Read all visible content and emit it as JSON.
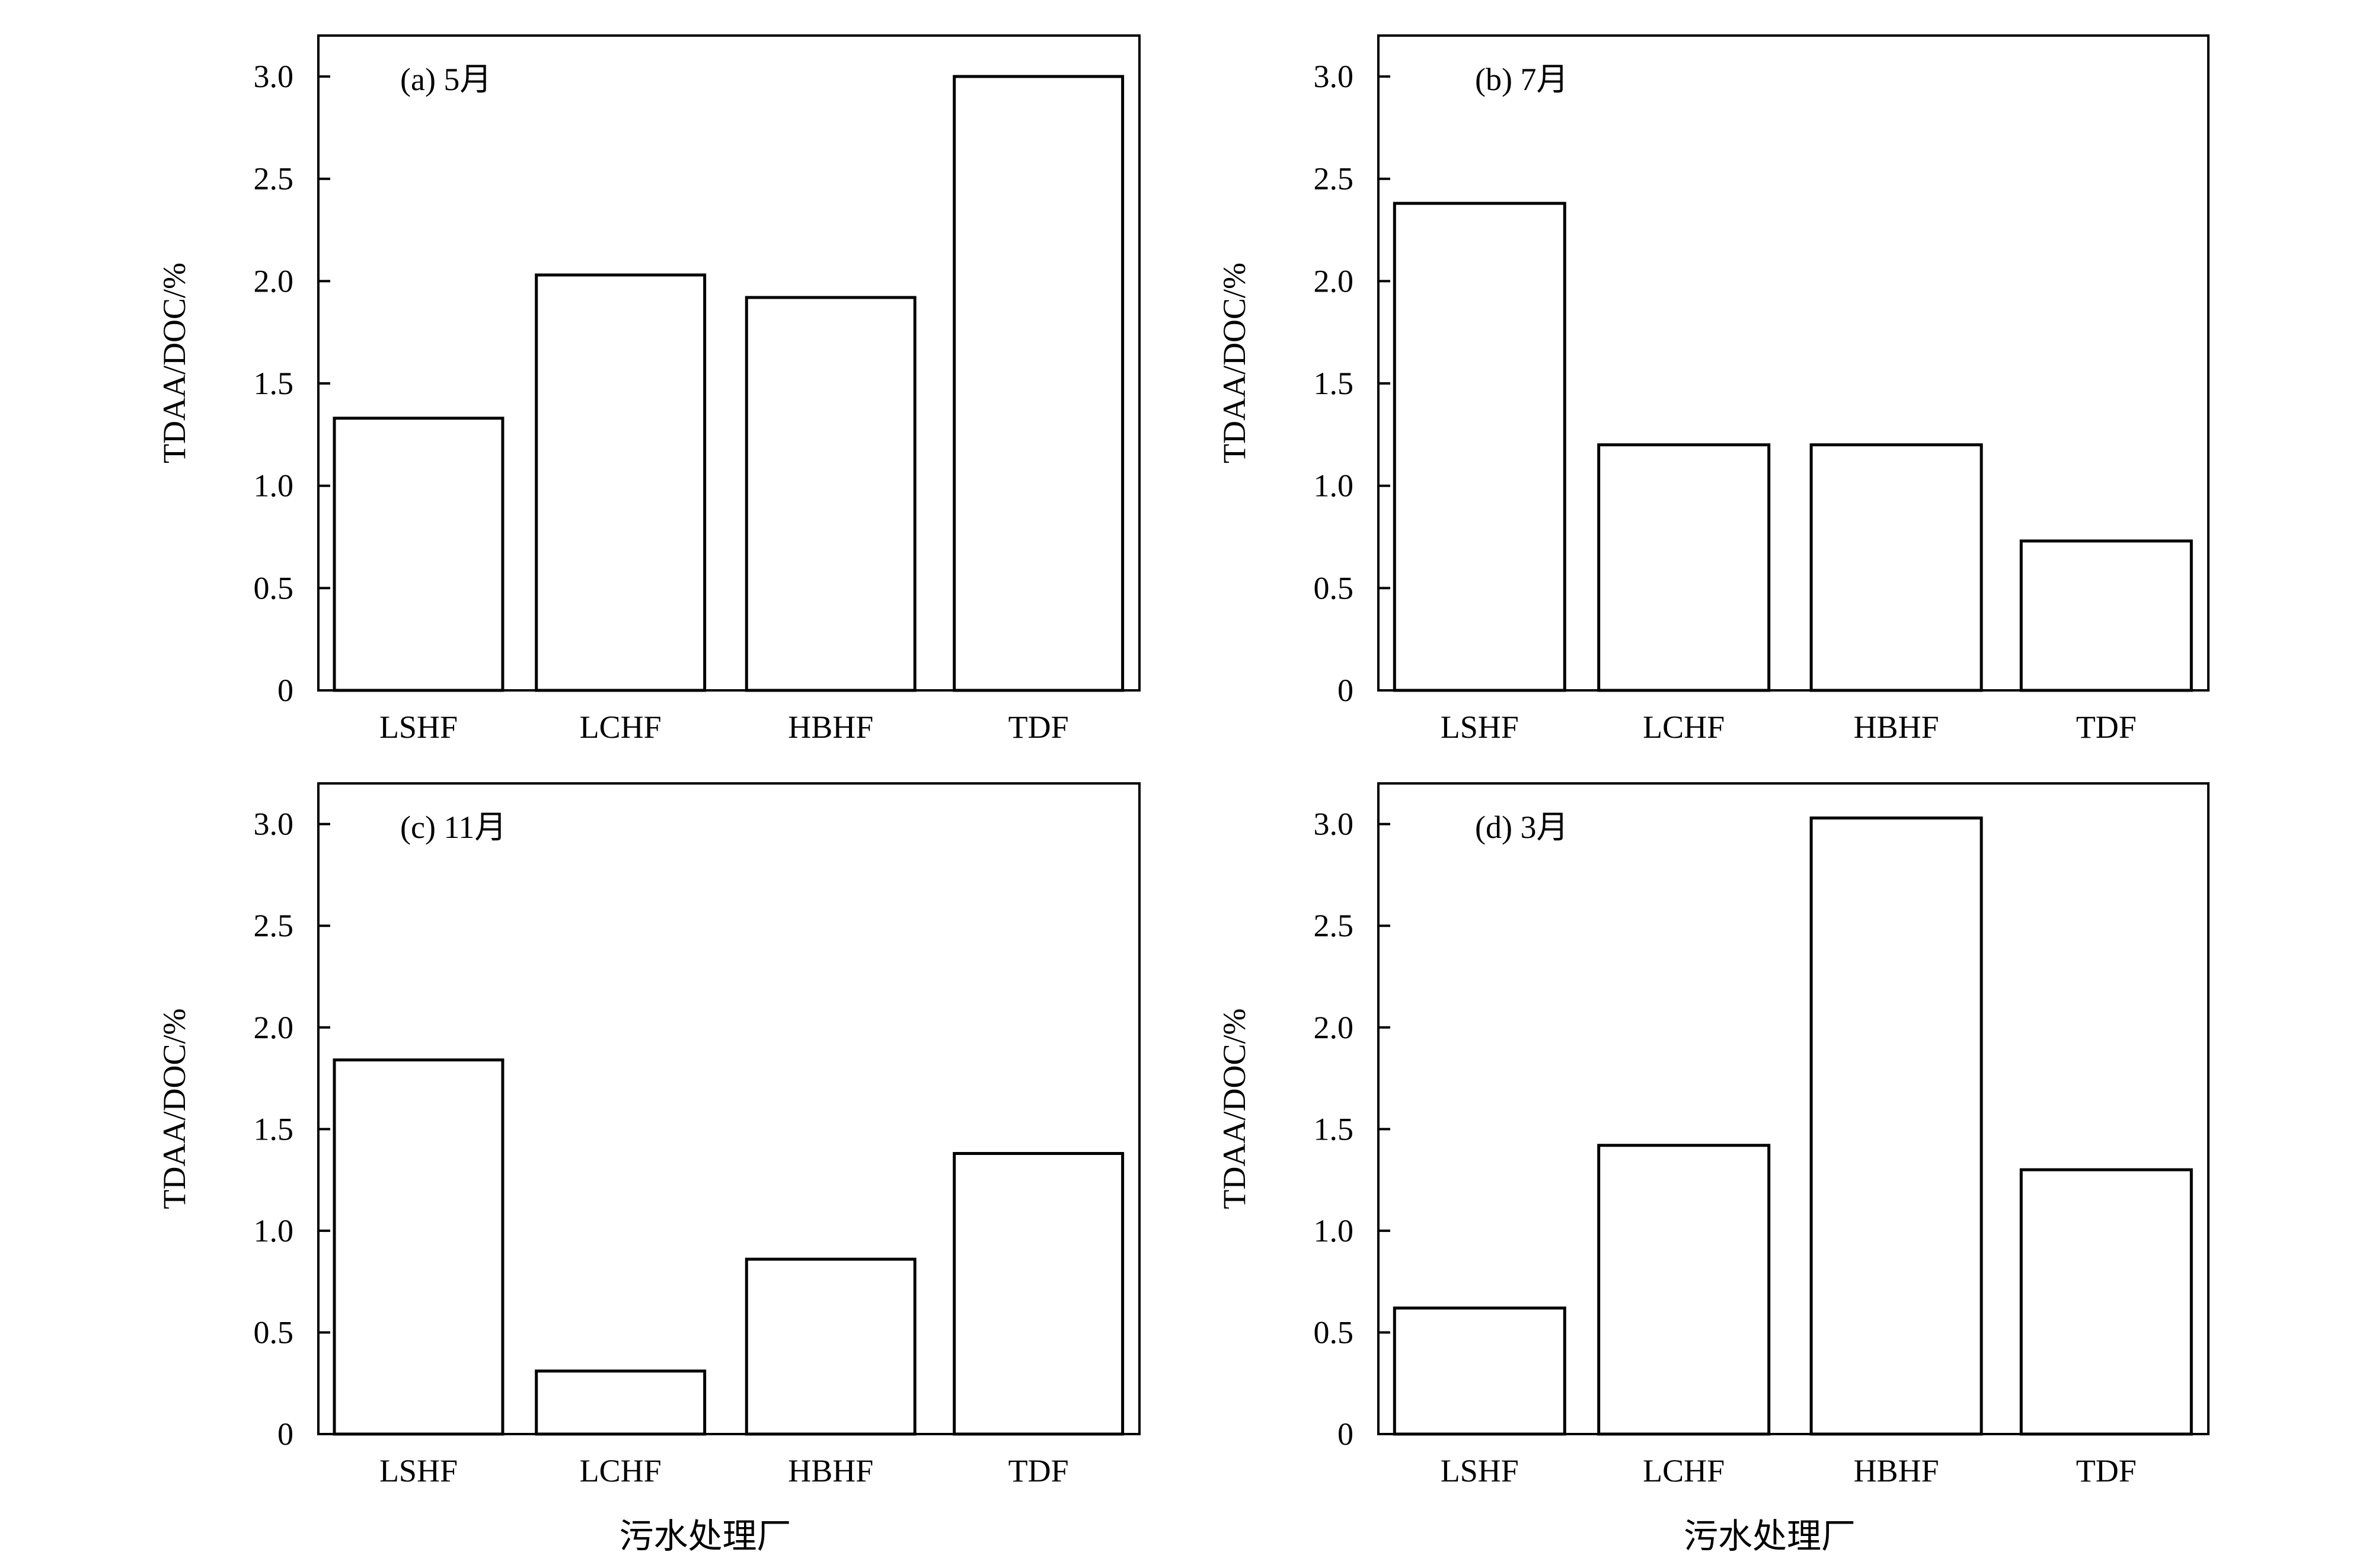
{
  "colors": {
    "bar_fill": "#ffffff",
    "stroke": "#000000",
    "background": "#ffffff"
  },
  "chart_data": [
    {
      "type": "bar",
      "panel_label": "(a) 5月",
      "categories": [
        "LSHF",
        "LCHF",
        "HBHF",
        "TDF"
      ],
      "values": [
        1.33,
        2.03,
        1.92,
        3.0
      ],
      "ylabel": "TDAA/DOC/%",
      "xlabel": "",
      "ylim": [
        0,
        3.2
      ],
      "yticks": [
        "0",
        "0.5",
        "1.0",
        "1.5",
        "2.0",
        "2.5",
        "3.0"
      ],
      "grid": false
    },
    {
      "type": "bar",
      "panel_label": "(b) 7月",
      "categories": [
        "LSHF",
        "LCHF",
        "HBHF",
        "TDF"
      ],
      "values": [
        2.38,
        1.2,
        1.2,
        0.73
      ],
      "ylabel": "TDAA/DOC/%",
      "xlabel": "",
      "ylim": [
        0,
        3.2
      ],
      "yticks": [
        "0",
        "0.5",
        "1.0",
        "1.5",
        "2.0",
        "2.5",
        "3.0"
      ],
      "grid": false
    },
    {
      "type": "bar",
      "panel_label": "(c) 11月",
      "categories": [
        "LSHF",
        "LCHF",
        "HBHF",
        "TDF"
      ],
      "values": [
        1.84,
        0.31,
        0.86,
        1.38
      ],
      "ylabel": "TDAA/DOC/%",
      "xlabel": "污水处理厂",
      "ylim": [
        0,
        3.2
      ],
      "yticks": [
        "0",
        "0.5",
        "1.0",
        "1.5",
        "2.0",
        "2.5",
        "3.0"
      ],
      "grid": false
    },
    {
      "type": "bar",
      "panel_label": "(d) 3月",
      "categories": [
        "LSHF",
        "LCHF",
        "HBHF",
        "TDF"
      ],
      "values": [
        0.62,
        1.42,
        3.03,
        1.3
      ],
      "ylabel": "TDAA/DOC/%",
      "xlabel": "污水处理厂",
      "ylim": [
        0,
        3.2
      ],
      "yticks": [
        "0",
        "0.5",
        "1.0",
        "1.5",
        "2.0",
        "2.5",
        "3.0"
      ],
      "grid": false
    }
  ]
}
